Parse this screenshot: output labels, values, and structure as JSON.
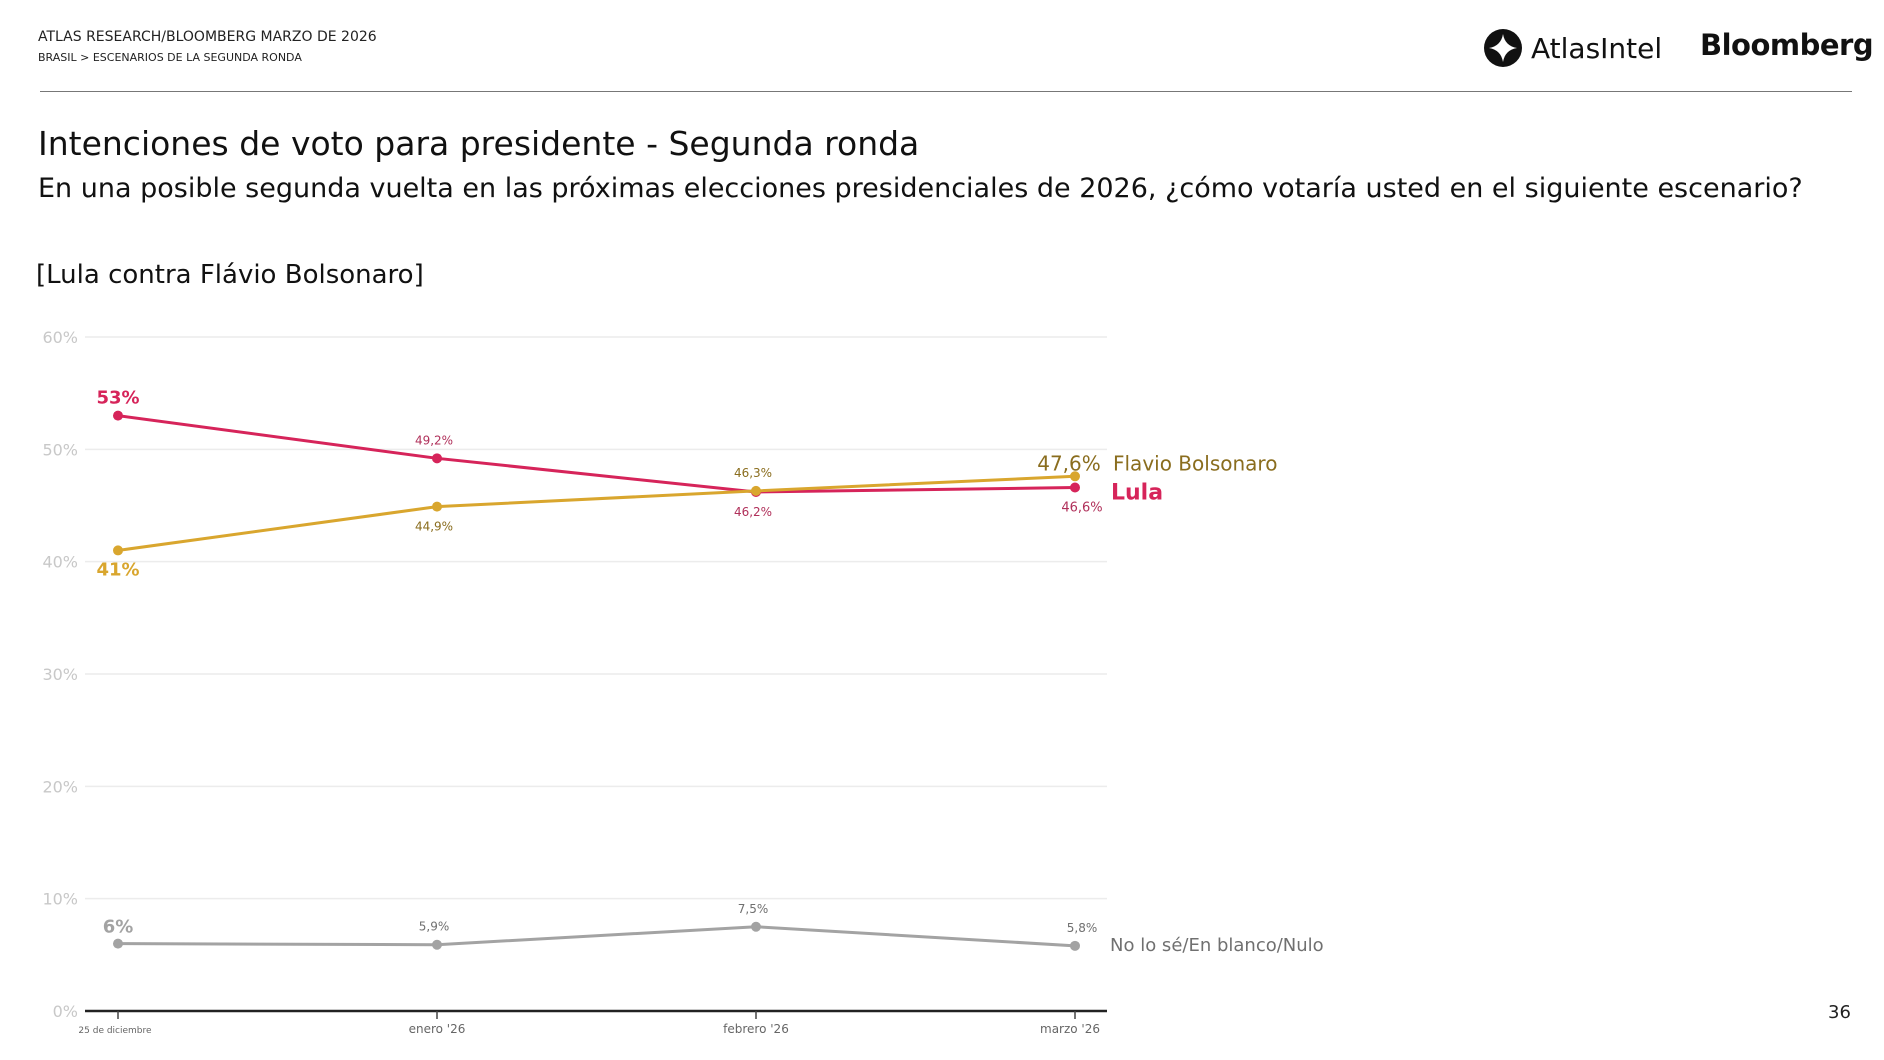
{
  "header": {
    "title": "ATLAS RESEARCH/BLOOMBERG MARZO DE 2026",
    "breadcrumb": "BRASIL > ESCENARIOS DE LA SEGUNDA RONDA"
  },
  "logos": {
    "atlas": "AtlasIntel",
    "bloomberg": "Bloomberg"
  },
  "title": "Intenciones de voto para presidente - Segunda ronda",
  "question": "En una posible segunda vuelta en las próximas elecciones presidenciales de 2026, ¿cómo votaría usted en el siguiente escenario?",
  "scenario": "[Lula contra Flávio Bolsonaro]",
  "page_number": "36",
  "chart_data": {
    "type": "line",
    "categories": [
      "25 de diciembre",
      "enero '26",
      "febrero '26",
      "marzo '26"
    ],
    "ylim": [
      0,
      60
    ],
    "yticks": [
      "0%",
      "10%",
      "20%",
      "30%",
      "40%",
      "50%",
      "60%"
    ],
    "grid": true,
    "legend_placement": "end-of-line labels",
    "series": [
      {
        "name": "Lula",
        "color": "#d6245a",
        "values": [
          53,
          49.2,
          46.2,
          46.6
        ],
        "labels": [
          "53%",
          "49,2%",
          "46,2%",
          "46,6%"
        ]
      },
      {
        "name": "Flavio Bolsonaro",
        "color": "#d9a62e",
        "label_color": "#8a6d1e",
        "values": [
          41,
          44.9,
          46.3,
          47.6
        ],
        "labels": [
          "41%",
          "44,9%",
          "46,3%",
          "47,6%"
        ]
      },
      {
        "name": "No lo sé/En blanco/Nulo",
        "color": "#a3a3a3",
        "label_color": "#707070",
        "values": [
          6,
          5.9,
          7.5,
          5.8
        ],
        "labels": [
          "6%",
          "5,9%",
          "7,5%",
          "5,8%"
        ]
      }
    ]
  }
}
